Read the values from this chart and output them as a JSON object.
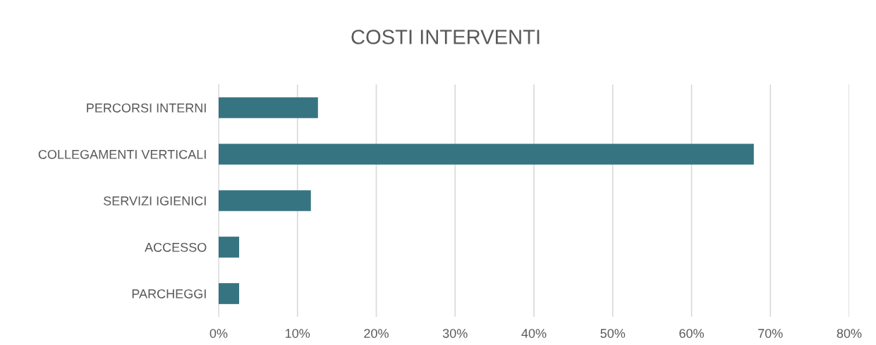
{
  "chart_data": {
    "type": "bar",
    "orientation": "horizontal",
    "title": "COSTI INTERVENTI",
    "categories": [
      "PERCORSI INTERNI",
      "COLLEGAMENTI VERTICALI",
      "SERVIZI IGIENICI",
      "ACCESSO",
      "PARCHEGGI"
    ],
    "values": [
      12.6,
      67.9,
      11.7,
      2.6,
      2.6
    ],
    "color": "#367482",
    "xlim": [
      0,
      80
    ],
    "xticks": [
      {
        "value": 0,
        "label": "0%"
      },
      {
        "value": 10,
        "label": "10%"
      },
      {
        "value": 20,
        "label": "20%"
      },
      {
        "value": 30,
        "label": "30%"
      },
      {
        "value": 40,
        "label": "40%"
      },
      {
        "value": 50,
        "label": "50%"
      },
      {
        "value": 60,
        "label": "60%"
      },
      {
        "value": 70,
        "label": "70%"
      },
      {
        "value": 80,
        "label": "80%"
      }
    ],
    "grid": "x",
    "legend": false
  }
}
